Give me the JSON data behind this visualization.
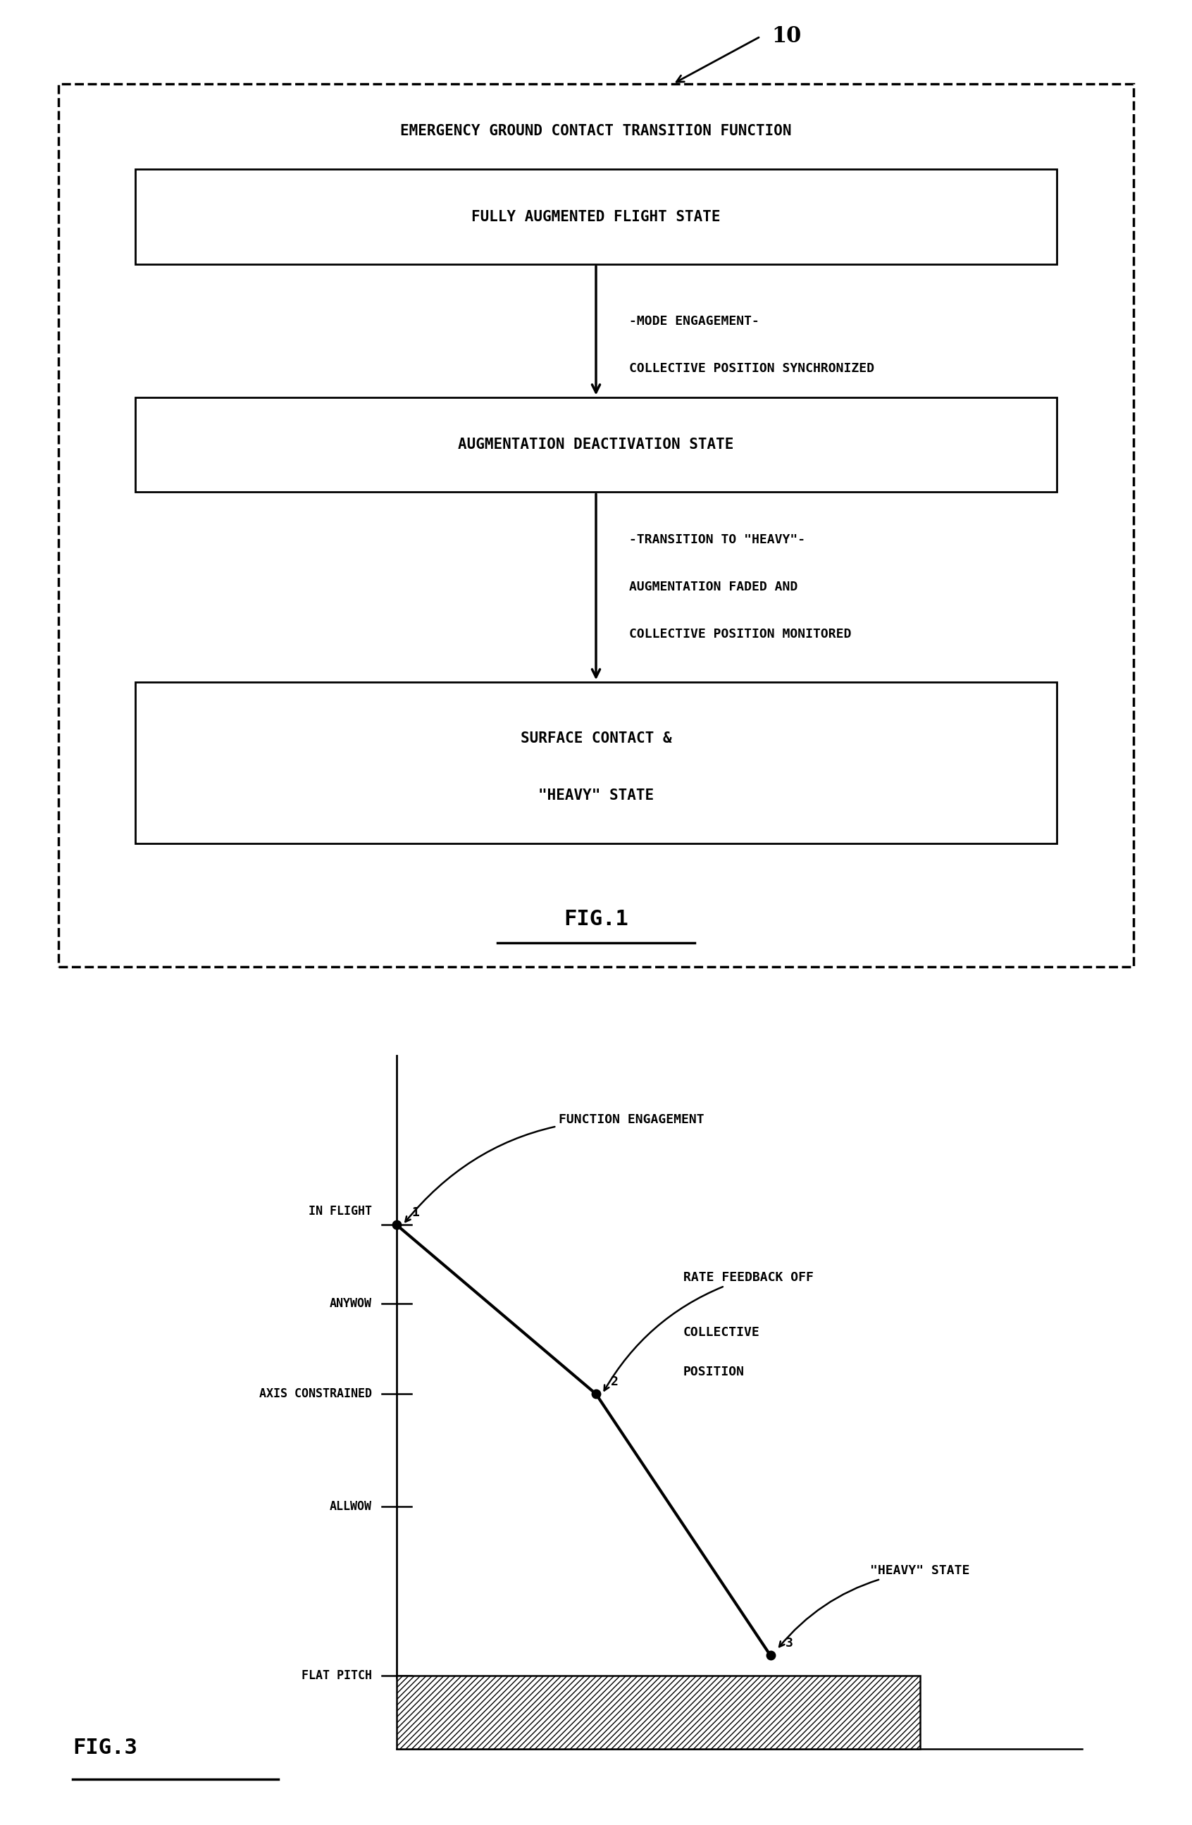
{
  "fig1": {
    "title": "EMERGENCY GROUND CONTACT TRANSITION FUNCTION",
    "box1_text": "FULLY AUGMENTED FLIGHT STATE",
    "box2_text": "AUGMENTATION DEACTIVATION STATE",
    "box3_line1": "SURFACE CONTACT &",
    "box3_line2": "\"HEAVY\" STATE",
    "annotation1_line1": "-MODE ENGAGEMENT-",
    "annotation1_line2": "COLLECTIVE POSITION SYNCHRONIZED",
    "annotation2_line1": "-TRANSITION TO \"HEAVY\"-",
    "annotation2_line2": "AUGMENTATION FADED AND",
    "annotation2_line3": "COLLECTIVE POSITION MONITORED",
    "label_10": "10",
    "fig_label": "FIG.1"
  },
  "fig3": {
    "fig_label": "FIG.3",
    "y_tick_labels": [
      "IN FLIGHT",
      "ANYWOW",
      "AXIS CONSTRAINED",
      "ALLWOW",
      "FLAT PITCH"
    ],
    "y_tick_values": [
      4.0,
      3.3,
      2.5,
      1.5,
      0.0
    ],
    "pt1": [
      0.0,
      4.0
    ],
    "pt2": [
      1.6,
      2.5
    ],
    "pt3": [
      3.0,
      0.18
    ],
    "ann_fe_text": "FUNCTION ENGAGEMENT",
    "ann_rfo_text1": "RATE FEEDBACK OFF",
    "ann_rfo_text2": "COLLECTIVE",
    "ann_rfo_text3": "POSITION",
    "ann_hs_text": "\"HEAVY\" STATE"
  },
  "bg": "#ffffff"
}
